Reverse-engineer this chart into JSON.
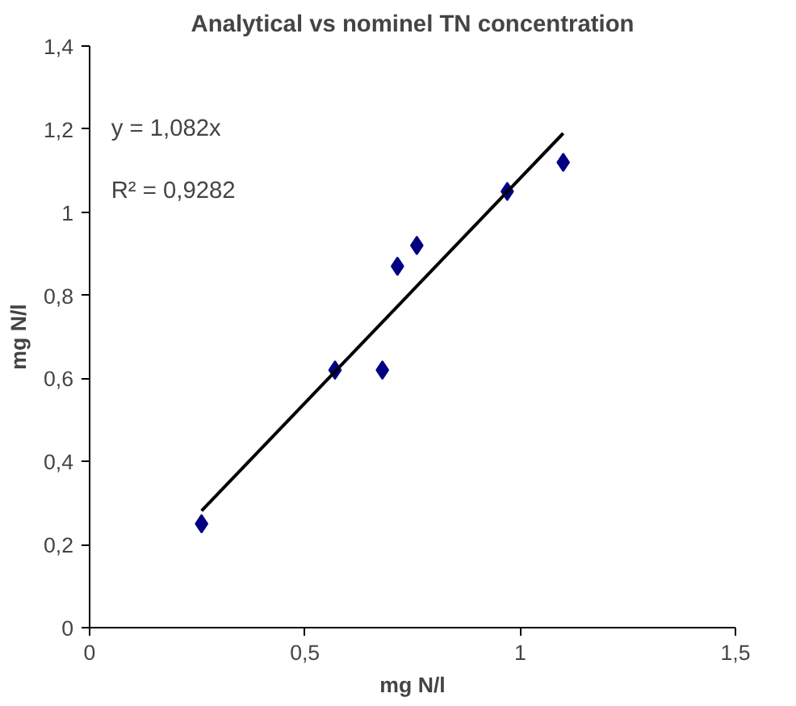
{
  "chart_data": {
    "type": "scatter",
    "title": "Analytical vs nominel TN concentration",
    "xlabel": "mg N/l",
    "ylabel": "mg N/l",
    "xlim": [
      0,
      1.5
    ],
    "xticks": [
      0,
      {
        "value": 0.5,
        "label": "0,5"
      },
      1,
      {
        "value": 1.5,
        "label": "1,5"
      }
    ],
    "ylim": [
      0,
      1.4
    ],
    "yticks": [
      0,
      {
        "value": 0.2,
        "label": "0,2"
      },
      {
        "value": 0.4,
        "label": "0,4"
      },
      {
        "value": 0.6,
        "label": "0,6"
      },
      {
        "value": 0.8,
        "label": "0,8"
      },
      1,
      {
        "value": 1.2,
        "label": "1,2"
      },
      {
        "value": 1.4,
        "label": "1,4"
      }
    ],
    "grid": false,
    "series": [
      {
        "marker": "diamond",
        "color": "#000080",
        "x": [
          0.26,
          0.57,
          0.68,
          0.715,
          0.76,
          0.97,
          1.1
        ],
        "values": [
          0.25,
          0.62,
          0.62,
          0.87,
          0.92,
          1.05,
          1.12
        ]
      },
      {
        "type": "line",
        "color": "#000000",
        "x": [
          0.26,
          1.1
        ],
        "values": [
          0.281,
          1.19
        ]
      }
    ],
    "annotations": [
      "y = 1,082x",
      "R² = 0,9282"
    ]
  }
}
